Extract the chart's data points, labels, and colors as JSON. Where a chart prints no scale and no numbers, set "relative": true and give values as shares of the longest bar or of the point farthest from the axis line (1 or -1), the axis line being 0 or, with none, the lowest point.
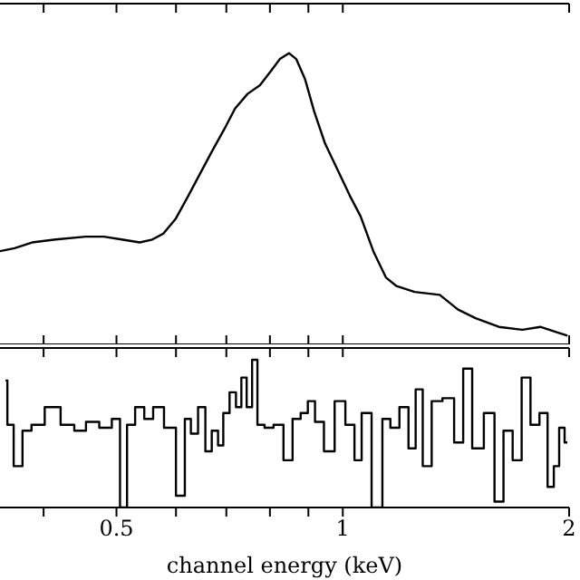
{
  "chart_data": [
    {
      "type": "line",
      "relative": true,
      "log": "x",
      "tick_labels": false,
      "xlim": [
        0.35,
        2
      ],
      "xticks": [
        {
          "value": 0.4,
          "label": null
        },
        0.5,
        {
          "value": 0.6,
          "label": null
        },
        {
          "value": 0.7,
          "label": null
        },
        {
          "value": 0.8,
          "label": null
        },
        {
          "value": 0.9,
          "label": null
        },
        1,
        2
      ],
      "series": [
        {
          "color": "#000000",
          "x": [
            0.35,
            0.366,
            0.386,
            0.415,
            0.455,
            0.481,
            0.508,
            0.537,
            0.558,
            0.577,
            0.599,
            0.623,
            0.644,
            0.669,
            0.696,
            0.719,
            0.747,
            0.776,
            0.803,
            0.825,
            0.848,
            0.867,
            0.891,
            0.916,
            0.947,
            0.984,
            1.022,
            1.056,
            1.098,
            1.141,
            1.179,
            1.246,
            1.346,
            1.422,
            1.502,
            1.613,
            1.733,
            1.831,
            1.934,
            1.99
          ],
          "values": [
            0.32,
            0.33,
            0.35,
            0.36,
            0.37,
            0.37,
            0.36,
            0.35,
            0.36,
            0.38,
            0.43,
            0.51,
            0.58,
            0.66,
            0.74,
            0.81,
            0.86,
            0.89,
            0.94,
            0.98,
            1,
            0.98,
            0.91,
            0.8,
            0.69,
            0.6,
            0.51,
            0.44,
            0.32,
            0.23,
            0.2,
            0.18,
            0.17,
            0.12,
            0.09,
            0.06,
            0.05,
            0.06,
            0.04,
            0.03
          ]
        }
      ]
    },
    {
      "type": "step",
      "relative": true,
      "log": "x",
      "xlabel": "channel energy (keV)",
      "xlim": [
        0.35,
        2
      ],
      "xticks": [
        {
          "value": 0.4,
          "label": null
        },
        0.5,
        {
          "value": 0.6,
          "label": null
        },
        {
          "value": 0.7,
          "label": null
        },
        {
          "value": 0.8,
          "label": null
        },
        {
          "value": 0.9,
          "label": null
        },
        1,
        2
      ],
      "series": [
        {
          "color": "#000000",
          "x": [
            0.356,
            0.36,
            0.37,
            0.38,
            0.391,
            0.412,
            0.431,
            0.448,
            0.463,
            0.486,
            0.5,
            0.511,
            0.522,
            0.537,
            0.552,
            0.567,
            0.59,
            0.61,
            0.623,
            0.633,
            0.651,
            0.662,
            0.677,
            0.688,
            0.699,
            0.715,
            0.727,
            0.739,
            0.751,
            0.764,
            0.776,
            0.798,
            0.82,
            0.848,
            0.867,
            0.891,
            0.906,
            0.931,
            0.957,
            0.994,
            1.022,
            1.051,
            1.068,
            1.117,
            1.141,
            1.173,
            1.206,
            1.24,
            1.26,
            1.295,
            1.331,
            1.383,
            1.43,
            1.462,
            1.511,
            1.57,
            1.613,
            1.659,
            1.706,
            1.753,
            1.801,
            1.852,
            1.893,
            1.924,
            1.956,
            1.989
          ],
          "values": [
            0.86,
            0.56,
            0.28,
            0.52,
            0.56,
            0.68,
            0.56,
            0.52,
            0.58,
            0.54,
            0.6,
            0,
            0.56,
            0.68,
            0.6,
            0.68,
            0.54,
            0.08,
            0.6,
            0.5,
            0.68,
            0.38,
            0.52,
            0.42,
            0.64,
            0.78,
            0.68,
            0.88,
            0.68,
            1,
            0.56,
            0.54,
            0.56,
            0.32,
            0.6,
            0.64,
            0.72,
            0.58,
            0.38,
            0.72,
            0.56,
            0.32,
            0.64,
            0,
            0.6,
            0.54,
            0.68,
            0.4,
            0.8,
            0.28,
            0.72,
            0.74,
            0.44,
            0.94,
            0.4,
            0.64,
            0.04,
            0.52,
            0.32,
            0.88,
            0.56,
            0.64,
            0.14,
            0.28,
            0.54,
            0.44
          ]
        }
      ]
    }
  ]
}
